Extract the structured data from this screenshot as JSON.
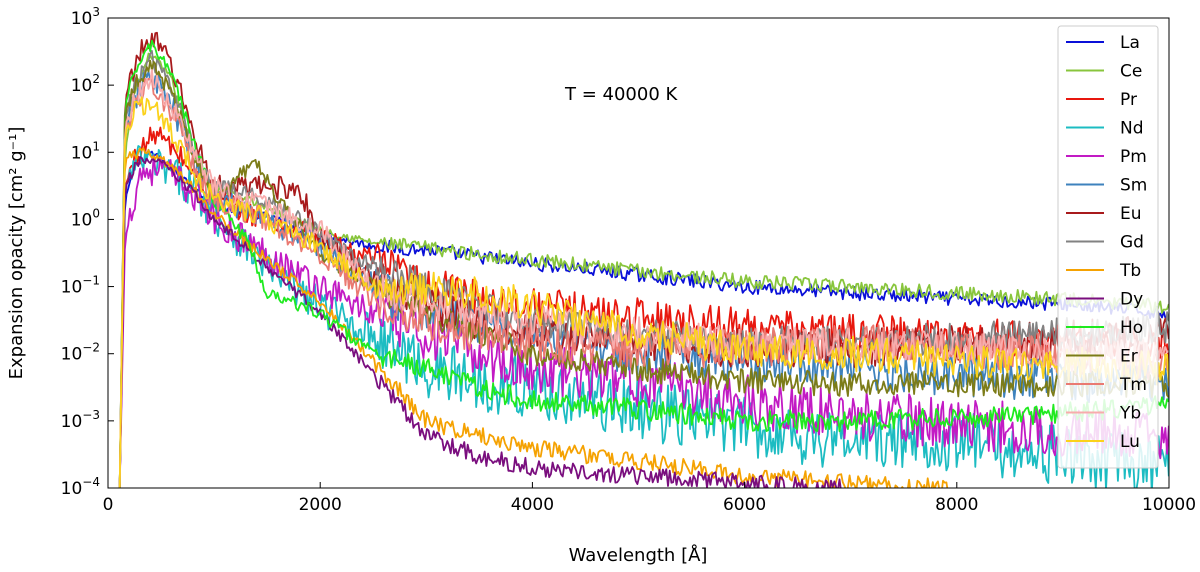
{
  "chart_data": {
    "type": "line",
    "annotation": "T = 40000 K",
    "xlabel": "Wavelength [Å]",
    "ylabel": "Expansion opacity [cm² g⁻¹]",
    "xlim": [
      0,
      10000
    ],
    "ylim": [
      0.0001,
      1000
    ],
    "yscale": "log",
    "x_ticks": [
      "0",
      "2000",
      "4000",
      "6000",
      "8000",
      "10000"
    ],
    "y_ticks": [
      {
        "base": "10",
        "exp": "3"
      },
      {
        "base": "10",
        "exp": "2"
      },
      {
        "base": "10",
        "exp": "1"
      },
      {
        "base": "10",
        "exp": "0"
      },
      {
        "base": "10",
        "exp": "−1"
      },
      {
        "base": "10",
        "exp": "−2"
      },
      {
        "base": "10",
        "exp": "−3"
      },
      {
        "base": "10",
        "exp": "−4"
      }
    ],
    "legend_position": "right",
    "series": [
      {
        "name": "La",
        "color": "#0a10d8",
        "points": [
          [
            110,
            0.0001
          ],
          [
            160,
            2
          ],
          [
            250,
            6
          ],
          [
            400,
            10
          ],
          [
            600,
            6
          ],
          [
            800,
            3
          ],
          [
            1000,
            1.6
          ],
          [
            1500,
            1.1
          ],
          [
            2000,
            0.6
          ],
          [
            2500,
            0.4
          ],
          [
            3000,
            0.35
          ],
          [
            3500,
            0.28
          ],
          [
            4000,
            0.22
          ],
          [
            5000,
            0.15
          ],
          [
            6000,
            0.1
          ],
          [
            7000,
            0.08
          ],
          [
            8000,
            0.065
          ],
          [
            9000,
            0.055
          ],
          [
            10000,
            0.04
          ]
        ],
        "noise": 0.08
      },
      {
        "name": "Ce",
        "color": "#88c53c",
        "points": [
          [
            110,
            0.0001
          ],
          [
            160,
            10
          ],
          [
            250,
            80
          ],
          [
            400,
            300
          ],
          [
            600,
            120
          ],
          [
            800,
            10
          ],
          [
            1000,
            3
          ],
          [
            1500,
            1.5
          ],
          [
            2000,
            0.7
          ],
          [
            2500,
            0.45
          ],
          [
            3000,
            0.38
          ],
          [
            3500,
            0.3
          ],
          [
            4000,
            0.25
          ],
          [
            5000,
            0.17
          ],
          [
            6000,
            0.12
          ],
          [
            7000,
            0.1
          ],
          [
            8000,
            0.08
          ],
          [
            9000,
            0.065
          ],
          [
            10000,
            0.05
          ]
        ],
        "noise": 0.08
      },
      {
        "name": "Pr",
        "color": "#e8170e",
        "points": [
          [
            110,
            0.0001
          ],
          [
            160,
            3
          ],
          [
            250,
            8
          ],
          [
            450,
            20
          ],
          [
            700,
            8
          ],
          [
            900,
            3
          ],
          [
            1200,
            1.5
          ],
          [
            1500,
            1
          ],
          [
            2000,
            0.5
          ],
          [
            2500,
            0.25
          ],
          [
            3000,
            0.1
          ],
          [
            3500,
            0.07
          ],
          [
            4000,
            0.05
          ],
          [
            5000,
            0.035
          ],
          [
            6000,
            0.025
          ],
          [
            7000,
            0.02
          ],
          [
            8000,
            0.018
          ],
          [
            9000,
            0.015
          ],
          [
            10000,
            0.012
          ]
        ],
        "noise": 0.22
      },
      {
        "name": "Nd",
        "color": "#1cbcc2",
        "points": [
          [
            110,
            0.0001
          ],
          [
            160,
            3
          ],
          [
            300,
            8
          ],
          [
            500,
            6
          ],
          [
            800,
            3
          ],
          [
            1000,
            1.2
          ],
          [
            1500,
            0.2
          ],
          [
            2000,
            0.05
          ],
          [
            2500,
            0.02
          ],
          [
            3000,
            0.006
          ],
          [
            3500,
            0.004
          ],
          [
            4000,
            0.003
          ],
          [
            5000,
            0.0015
          ],
          [
            6000,
            0.0008
          ],
          [
            7000,
            0.0005
          ],
          [
            8000,
            0.0005
          ],
          [
            9000,
            0.0003
          ],
          [
            10000,
            0.0002
          ]
        ],
        "noise": 0.35
      },
      {
        "name": "Pm",
        "color": "#c21ac4",
        "points": [
          [
            110,
            0.0001
          ],
          [
            160,
            0.5
          ],
          [
            300,
            5
          ],
          [
            500,
            6
          ],
          [
            800,
            2.5
          ],
          [
            1000,
            1
          ],
          [
            1500,
            0.3
          ],
          [
            2000,
            0.1
          ],
          [
            2500,
            0.04
          ],
          [
            3000,
            0.02
          ],
          [
            3500,
            0.01
          ],
          [
            4000,
            0.006
          ],
          [
            5000,
            0.004
          ],
          [
            6000,
            0.002
          ],
          [
            7000,
            0.0012
          ],
          [
            8000,
            0.0009
          ],
          [
            9000,
            0.0007
          ],
          [
            10000,
            0.0006
          ]
        ],
        "noise": 0.3
      },
      {
        "name": "Sm",
        "color": "#3e82bd",
        "points": [
          [
            110,
            0.0001
          ],
          [
            160,
            20
          ],
          [
            250,
            60
          ],
          [
            400,
            150
          ],
          [
            600,
            50
          ],
          [
            800,
            8
          ],
          [
            1000,
            2
          ],
          [
            1500,
            1
          ],
          [
            2000,
            0.4
          ],
          [
            2500,
            0.1
          ],
          [
            3000,
            0.04
          ],
          [
            3500,
            0.03
          ],
          [
            4000,
            0.02
          ],
          [
            5000,
            0.01
          ],
          [
            6000,
            0.008
          ],
          [
            7000,
            0.006
          ],
          [
            8000,
            0.005
          ],
          [
            9000,
            0.004
          ],
          [
            10000,
            0.004
          ]
        ],
        "noise": 0.25
      },
      {
        "name": "Eu",
        "color": "#a81a1c",
        "points": [
          [
            110,
            0.0001
          ],
          [
            160,
            60
          ],
          [
            250,
            200
          ],
          [
            400,
            550
          ],
          [
            600,
            200
          ],
          [
            800,
            20
          ],
          [
            1000,
            3
          ],
          [
            1500,
            3
          ],
          [
            1800,
            3
          ],
          [
            2000,
            0.5
          ],
          [
            2500,
            0.15
          ],
          [
            3000,
            0.06
          ],
          [
            3500,
            0.03
          ],
          [
            4000,
            0.02
          ],
          [
            5000,
            0.015
          ],
          [
            6000,
            0.012
          ],
          [
            7000,
            0.012
          ],
          [
            8000,
            0.014
          ],
          [
            9000,
            0.016
          ],
          [
            10000,
            0.02
          ]
        ],
        "noise": 0.22
      },
      {
        "name": "Gd",
        "color": "#828282",
        "points": [
          [
            110,
            0.0001
          ],
          [
            160,
            30
          ],
          [
            250,
            100
          ],
          [
            400,
            250
          ],
          [
            600,
            100
          ],
          [
            800,
            12
          ],
          [
            1000,
            3
          ],
          [
            1500,
            2
          ],
          [
            2000,
            0.6
          ],
          [
            2500,
            0.2
          ],
          [
            3000,
            0.1
          ],
          [
            3500,
            0.05
          ],
          [
            4000,
            0.03
          ],
          [
            5000,
            0.02
          ],
          [
            6000,
            0.015
          ],
          [
            7000,
            0.015
          ],
          [
            8000,
            0.017
          ],
          [
            9000,
            0.02
          ],
          [
            10000,
            0.025
          ]
        ],
        "noise": 0.18
      },
      {
        "name": "Tb",
        "color": "#f5a202",
        "points": [
          [
            110,
            0.0001
          ],
          [
            160,
            8
          ],
          [
            300,
            10
          ],
          [
            500,
            8
          ],
          [
            800,
            3
          ],
          [
            1000,
            1.2
          ],
          [
            1500,
            0.25
          ],
          [
            2000,
            0.06
          ],
          [
            2500,
            0.008
          ],
          [
            3000,
            0.001
          ],
          [
            3500,
            0.0006
          ],
          [
            4000,
            0.0004
          ],
          [
            5000,
            0.00025
          ],
          [
            6000,
            0.00015
          ],
          [
            7000,
            0.00012
          ],
          [
            8000,
            0.0001
          ]
        ],
        "noise": 0.1
      },
      {
        "name": "Dy",
        "color": "#7a0e7e",
        "points": [
          [
            110,
            0.0001
          ],
          [
            160,
            3
          ],
          [
            300,
            8
          ],
          [
            500,
            7
          ],
          [
            800,
            2.5
          ],
          [
            1000,
            1
          ],
          [
            1500,
            0.2
          ],
          [
            2000,
            0.04
          ],
          [
            2500,
            0.005
          ],
          [
            3000,
            0.0006
          ],
          [
            3500,
            0.0003
          ],
          [
            4000,
            0.0002
          ],
          [
            5000,
            0.00015
          ],
          [
            6000,
            0.00012
          ],
          [
            7000,
            0.0001
          ]
        ],
        "noise": 0.1
      },
      {
        "name": "Ho",
        "color": "#1fea1f",
        "points": [
          [
            110,
            0.0001
          ],
          [
            160,
            50
          ],
          [
            250,
            150
          ],
          [
            400,
            400
          ],
          [
            600,
            150
          ],
          [
            800,
            15
          ],
          [
            1000,
            2
          ],
          [
            1300,
            0.5
          ],
          [
            1500,
            0.08
          ],
          [
            2000,
            0.04
          ],
          [
            2500,
            0.01
          ],
          [
            3000,
            0.006
          ],
          [
            3500,
            0.003
          ],
          [
            4000,
            0.002
          ],
          [
            5000,
            0.0015
          ],
          [
            6000,
            0.001
          ],
          [
            7000,
            0.001
          ],
          [
            8000,
            0.0011
          ],
          [
            9000,
            0.0013
          ],
          [
            10000,
            0.0017
          ]
        ],
        "noise": 0.12
      },
      {
        "name": "Er",
        "color": "#7c7c18",
        "points": [
          [
            110,
            0.0001
          ],
          [
            160,
            40
          ],
          [
            250,
            100
          ],
          [
            400,
            200
          ],
          [
            600,
            80
          ],
          [
            800,
            10
          ],
          [
            1000,
            2
          ],
          [
            1400,
            8
          ],
          [
            1600,
            2
          ],
          [
            2000,
            0.3
          ],
          [
            2500,
            0.1
          ],
          [
            3000,
            0.04
          ],
          [
            3500,
            0.02
          ],
          [
            4000,
            0.01
          ],
          [
            5000,
            0.006
          ],
          [
            6000,
            0.004
          ],
          [
            7000,
            0.0035
          ],
          [
            8000,
            0.0035
          ],
          [
            9000,
            0.0035
          ],
          [
            10000,
            0.0035
          ]
        ],
        "noise": 0.15
      },
      {
        "name": "Tm",
        "color": "#ea7a72",
        "points": [
          [
            110,
            0.0001
          ],
          [
            160,
            20
          ],
          [
            250,
            50
          ],
          [
            400,
            120
          ],
          [
            600,
            40
          ],
          [
            800,
            6
          ],
          [
            1000,
            2
          ],
          [
            1500,
            1
          ],
          [
            2000,
            0.3
          ],
          [
            2500,
            0.07
          ],
          [
            3000,
            0.03
          ],
          [
            3500,
            0.02
          ],
          [
            4000,
            0.015
          ],
          [
            5000,
            0.012
          ],
          [
            6000,
            0.012
          ],
          [
            7000,
            0.015
          ],
          [
            8000,
            0.012
          ],
          [
            9000,
            0.01
          ],
          [
            10000,
            0.007
          ]
        ],
        "noise": 0.22
      },
      {
        "name": "Yb",
        "color": "#f8acac",
        "points": [
          [
            110,
            0.0001
          ],
          [
            160,
            25
          ],
          [
            250,
            60
          ],
          [
            400,
            130
          ],
          [
            600,
            50
          ],
          [
            800,
            10
          ],
          [
            1000,
            3
          ],
          [
            1500,
            1.5
          ],
          [
            2000,
            0.7
          ],
          [
            2500,
            0.1
          ],
          [
            3000,
            0.06
          ],
          [
            3500,
            0.04
          ],
          [
            4000,
            0.03
          ],
          [
            5000,
            0.02
          ],
          [
            6000,
            0.015
          ],
          [
            7000,
            0.014
          ],
          [
            8000,
            0.012
          ],
          [
            9000,
            0.01
          ],
          [
            10000,
            0.009
          ]
        ],
        "noise": 0.2
      },
      {
        "name": "Lu",
        "color": "#fbd21c",
        "points": [
          [
            110,
            0.0001
          ],
          [
            160,
            20
          ],
          [
            250,
            40
          ],
          [
            400,
            60
          ],
          [
            600,
            20
          ],
          [
            800,
            5
          ],
          [
            1000,
            2
          ],
          [
            1500,
            1
          ],
          [
            2000,
            0.4
          ],
          [
            2500,
            0.1
          ],
          [
            3000,
            0.1
          ],
          [
            3500,
            0.08
          ],
          [
            4000,
            0.05
          ],
          [
            5000,
            0.02
          ],
          [
            6000,
            0.012
          ],
          [
            7000,
            0.01
          ],
          [
            8000,
            0.008
          ],
          [
            9000,
            0.007
          ],
          [
            10000,
            0.006
          ]
        ],
        "noise": 0.2
      }
    ]
  }
}
